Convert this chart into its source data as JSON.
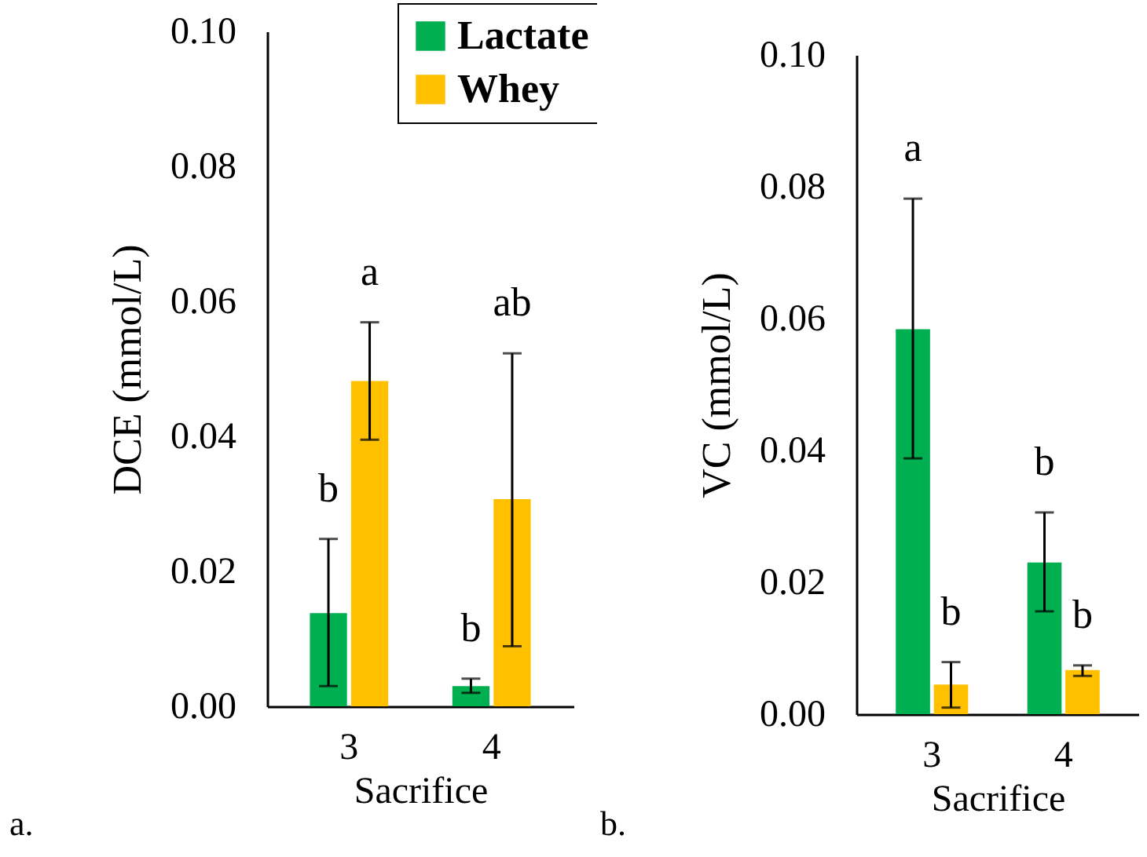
{
  "chart_data": [
    {
      "type": "bar",
      "xlabel": "Sacrifice",
      "ylabel": "DCE (mmol/L)",
      "categories": [
        "3",
        "4"
      ],
      "series": [
        {
          "name": "Lactate",
          "color": "#00b050",
          "values": [
            0.0138,
            0.003
          ],
          "errors": [
            [
              0.003,
              0.0248
            ],
            [
              0.002,
              0.0041
            ]
          ]
        },
        {
          "name": "Whey",
          "color": "#ffc000",
          "values": [
            0.0482,
            0.0307
          ],
          "errors": [
            [
              0.0395,
              0.0569
            ],
            [
              0.0089,
              0.0523
            ]
          ]
        }
      ],
      "ylim": [
        0,
        0.1
      ],
      "yticks": [
        {
          "value": 0,
          "label": "0.00"
        },
        {
          "value": 0.02,
          "label": "0.02"
        },
        {
          "value": 0.04,
          "label": "0.04"
        },
        {
          "value": 0.06,
          "label": "0.06"
        },
        {
          "value": 0.08,
          "label": "0.08"
        },
        {
          "value": 0.1,
          "label": "0.10"
        }
      ],
      "grid": false,
      "legend": "top right",
      "annotations": [
        "b",
        "a",
        "b",
        "ab",
        "a."
      ]
    },
    {
      "type": "bar",
      "xlabel": "Sacrifice",
      "ylabel": "VC (mmol/L)",
      "categories": [
        "3",
        "4"
      ],
      "series": [
        {
          "color": "#00b050",
          "values": [
            0.0584,
            0.023
          ],
          "errors": [
            [
              0.0388,
              0.0782
            ],
            [
              0.0156,
              0.0306
            ]
          ]
        },
        {
          "color": "#ffc000",
          "values": [
            0.0045,
            0.0067
          ],
          "errors": [
            [
              0.001,
              0.0079
            ],
            [
              0.0058,
              0.0074
            ]
          ]
        }
      ],
      "ylim": [
        0,
        0.1
      ],
      "yticks": [
        {
          "value": 0,
          "label": "0.00"
        },
        {
          "value": 0.02,
          "label": "0.02"
        },
        {
          "value": 0.04,
          "label": "0.04"
        },
        {
          "value": 0.06,
          "label": "0.06"
        },
        {
          "value": 0.08,
          "label": "0.08"
        },
        {
          "value": 0.1,
          "label": "0.10"
        }
      ],
      "grid": false,
      "legend": false,
      "annotations": [
        "a",
        "b",
        "b",
        "b",
        "b."
      ]
    }
  ]
}
